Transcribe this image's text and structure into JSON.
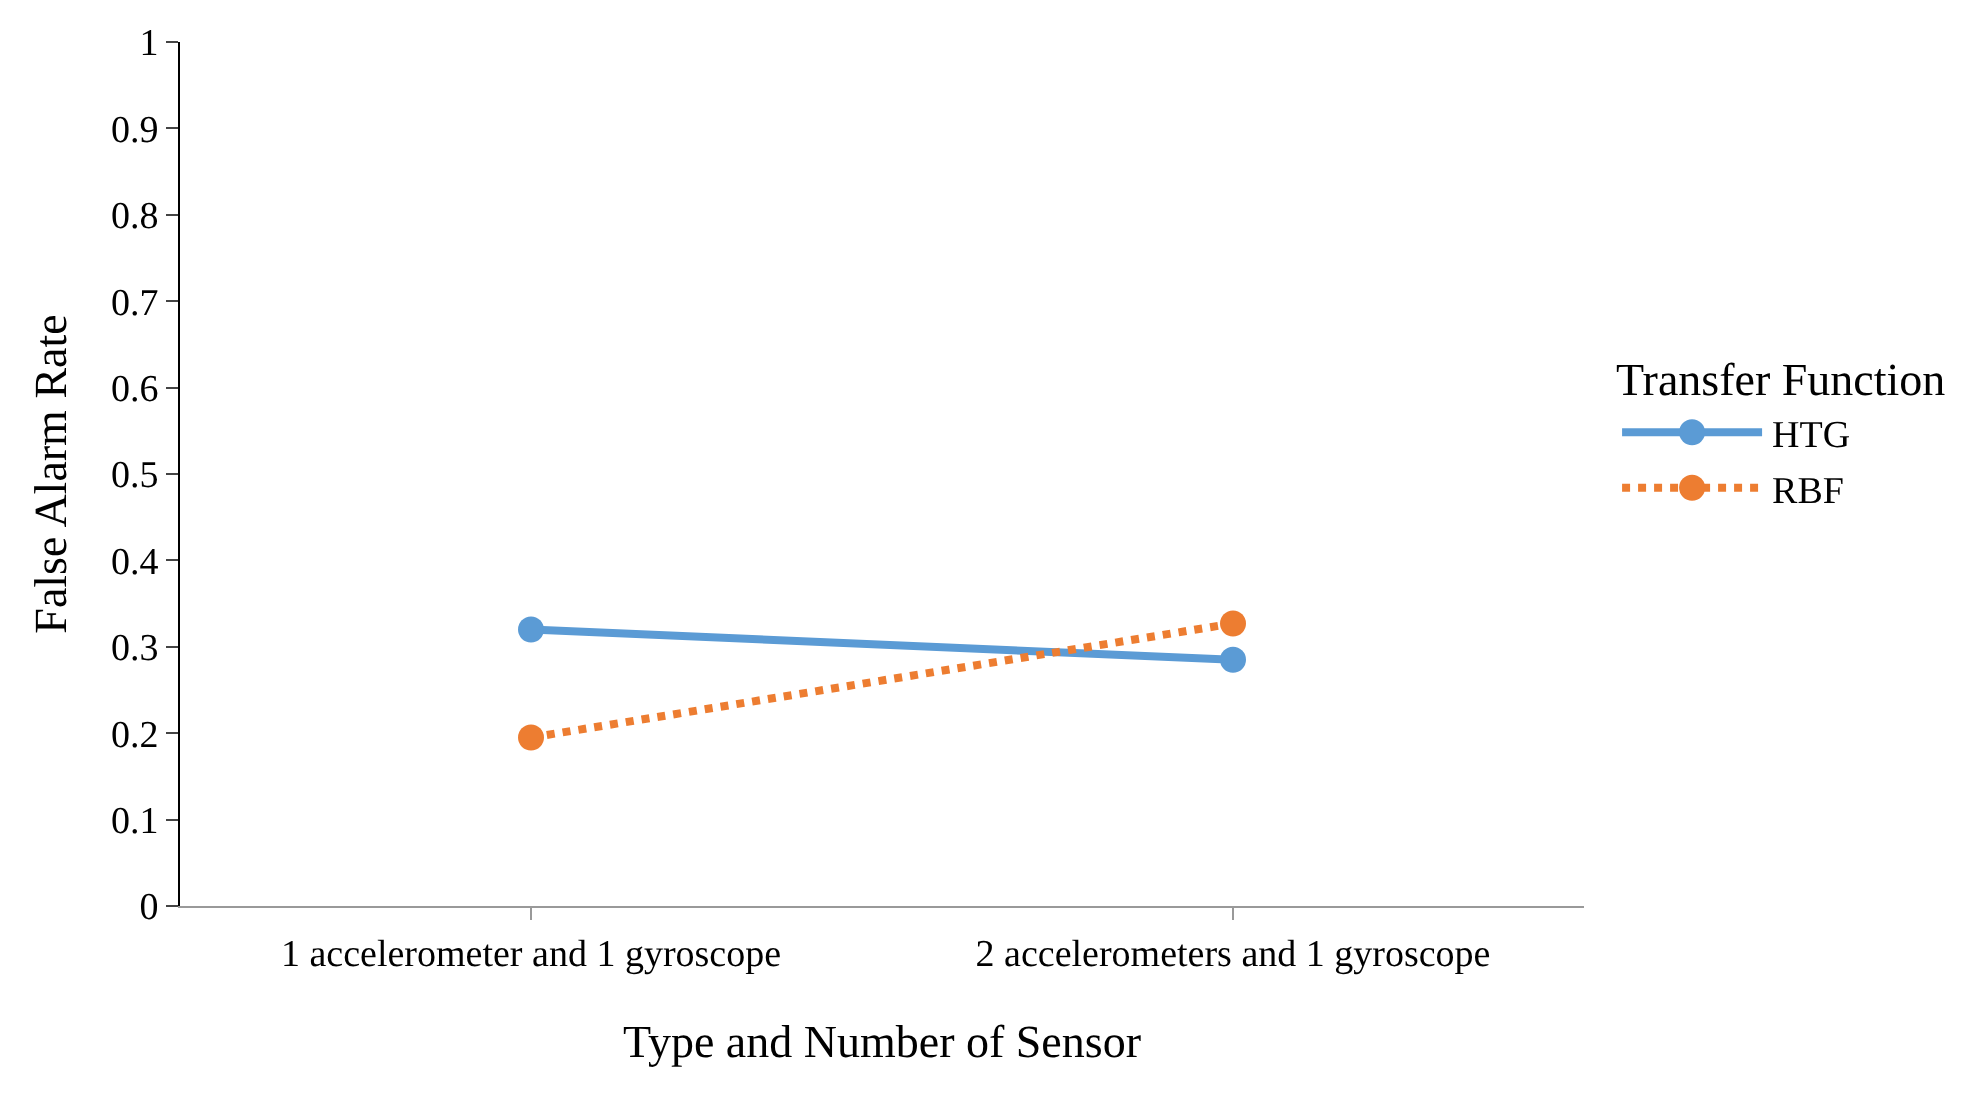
{
  "chart_data": {
    "type": "line",
    "xlabel": "Type and Number of Sensor",
    "ylabel": "False Alarm Rate",
    "legend_title": "Transfer Function",
    "categories": [
      "1 accelerometer and 1 gyroscope",
      "2 accelerometers and 1 gyroscope"
    ],
    "series": [
      {
        "name": "HTG",
        "color": "#5b9bd5",
        "values": [
          0.32,
          0.285
        ],
        "line_style": "solid"
      },
      {
        "name": "RBF",
        "color": "#ed7d31",
        "values": [
          0.195,
          0.327
        ],
        "line_style": "dotted"
      }
    ],
    "ylim": [
      0,
      1
    ],
    "yticks": [
      0,
      0.1,
      0.2,
      0.3,
      0.4,
      0.5,
      0.6,
      0.7,
      0.8,
      0.9,
      1
    ],
    "legend": "right",
    "marker": "circle"
  }
}
